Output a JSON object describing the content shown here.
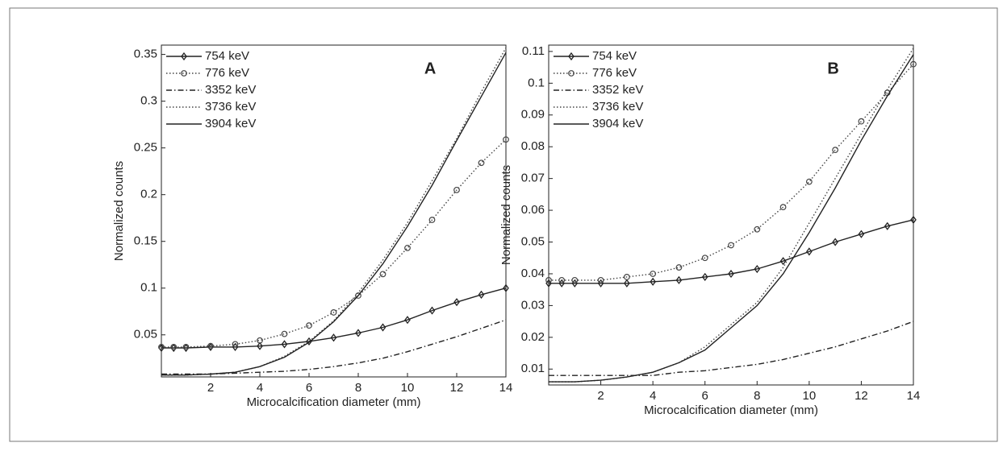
{
  "chart_data": [
    {
      "type": "line",
      "annotation": "A",
      "x_label": "Microcalcification diameter (mm)",
      "y_label": "Normalized counts",
      "x": [
        0,
        0.5,
        1,
        2,
        3,
        4,
        5,
        6,
        7,
        8,
        9,
        10,
        11,
        12,
        13,
        14
      ],
      "xlim": [
        0,
        14
      ],
      "xticks": [
        2,
        4,
        6,
        8,
        10,
        12,
        14
      ],
      "ylim": [
        0.005,
        0.36
      ],
      "yticks": [
        0.05,
        0.1,
        0.15,
        0.2,
        0.25,
        0.3,
        0.35
      ],
      "legend": "top-left",
      "series": [
        {
          "name": "754 keV",
          "color": "#222222",
          "dash": "solid",
          "marker": "diamond",
          "values": [
            0.036,
            0.036,
            0.036,
            0.037,
            0.037,
            0.038,
            0.04,
            0.043,
            0.047,
            0.052,
            0.058,
            0.066,
            0.076,
            0.085,
            0.093,
            0.1
          ]
        },
        {
          "name": "776 keV",
          "color": "#444444",
          "dash": "dotted",
          "marker": "circle",
          "values": [
            0.037,
            0.037,
            0.037,
            0.038,
            0.04,
            0.044,
            0.051,
            0.06,
            0.074,
            0.092,
            0.115,
            0.143,
            0.173,
            0.205,
            0.234,
            0.259
          ]
        },
        {
          "name": "3352 keV",
          "color": "#222222",
          "dash": "dashdot",
          "marker": "none",
          "values": [
            0.008,
            0.008,
            0.008,
            0.008,
            0.009,
            0.01,
            0.011,
            0.013,
            0.016,
            0.02,
            0.025,
            0.032,
            0.04,
            0.048,
            0.057,
            0.066
          ]
        },
        {
          "name": "3736 keV",
          "color": "#444444",
          "dash": "dotted",
          "marker": "none",
          "values": [
            0.007,
            0.007,
            0.007,
            0.008,
            0.01,
            0.016,
            0.027,
            0.043,
            0.065,
            0.095,
            0.13,
            0.17,
            0.215,
            0.26,
            0.31,
            0.357
          ]
        },
        {
          "name": "3904 keV",
          "color": "#222222",
          "dash": "solid",
          "marker": "none",
          "values": [
            0.007,
            0.007,
            0.007,
            0.008,
            0.01,
            0.016,
            0.026,
            0.042,
            0.064,
            0.092,
            0.126,
            0.166,
            0.21,
            0.258,
            0.305,
            0.352
          ]
        }
      ]
    },
    {
      "type": "line",
      "annotation": "B",
      "x_label": "Microcalcification diameter (mm)",
      "y_label": "Normalized counts",
      "x": [
        0,
        0.5,
        1,
        2,
        3,
        4,
        5,
        6,
        7,
        8,
        9,
        10,
        11,
        12,
        13,
        14
      ],
      "xlim": [
        0,
        14
      ],
      "xticks": [
        2,
        4,
        6,
        8,
        10,
        12,
        14
      ],
      "ylim": [
        0.005,
        0.112
      ],
      "yticks": [
        0.01,
        0.02,
        0.03,
        0.04,
        0.05,
        0.06,
        0.07,
        0.08,
        0.09,
        0.1,
        0.11
      ],
      "legend": "top-left",
      "series": [
        {
          "name": "754 keV",
          "color": "#222222",
          "dash": "solid",
          "marker": "diamond",
          "values": [
            0.037,
            0.037,
            0.037,
            0.037,
            0.037,
            0.0375,
            0.038,
            0.039,
            0.04,
            0.0415,
            0.044,
            0.047,
            0.05,
            0.0525,
            0.055,
            0.057
          ]
        },
        {
          "name": "776 keV",
          "color": "#444444",
          "dash": "dotted",
          "marker": "circle",
          "values": [
            0.038,
            0.038,
            0.038,
            0.038,
            0.039,
            0.04,
            0.042,
            0.045,
            0.049,
            0.054,
            0.061,
            0.069,
            0.079,
            0.088,
            0.097,
            0.106
          ]
        },
        {
          "name": "3352 keV",
          "color": "#222222",
          "dash": "dashdot",
          "marker": "none",
          "values": [
            0.008,
            0.008,
            0.008,
            0.008,
            0.008,
            0.008,
            0.009,
            0.0095,
            0.0105,
            0.0115,
            0.013,
            0.015,
            0.017,
            0.0195,
            0.022,
            0.025
          ]
        },
        {
          "name": "3736 keV",
          "color": "#444444",
          "dash": "dotted",
          "marker": "none",
          "values": [
            0.006,
            0.006,
            0.006,
            0.0065,
            0.0075,
            0.009,
            0.012,
            0.017,
            0.024,
            0.031,
            0.042,
            0.056,
            0.07,
            0.084,
            0.098,
            0.111
          ]
        },
        {
          "name": "3904 keV",
          "color": "#222222",
          "dash": "solid",
          "marker": "none",
          "values": [
            0.006,
            0.006,
            0.006,
            0.0065,
            0.0075,
            0.009,
            0.012,
            0.016,
            0.023,
            0.03,
            0.04,
            0.053,
            0.067,
            0.082,
            0.096,
            0.109
          ]
        }
      ]
    }
  ]
}
